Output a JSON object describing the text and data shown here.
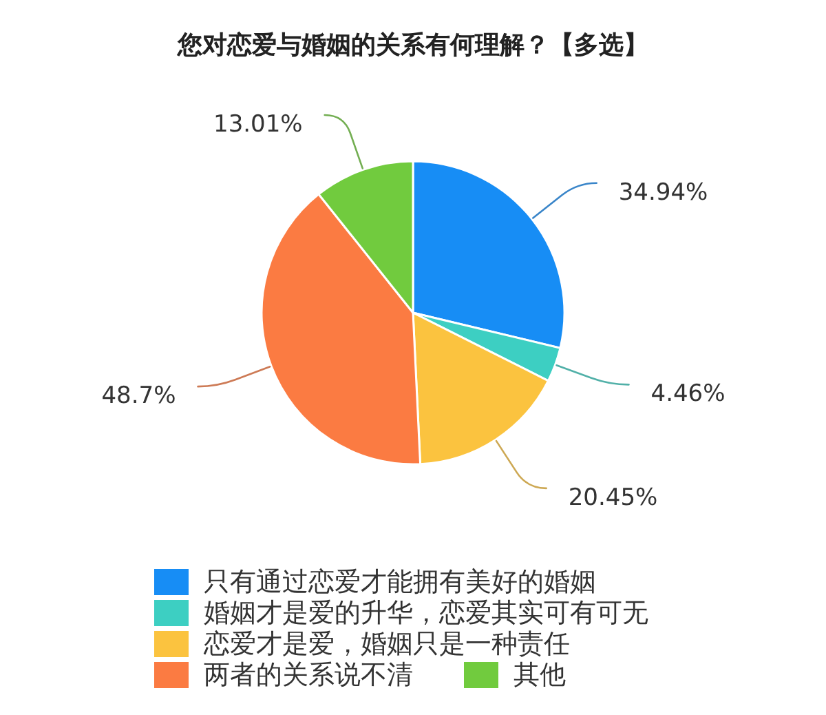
{
  "chart_data": {
    "type": "pie",
    "title": "您对恋爱与婚姻的关系有何理解？【多选】",
    "categories": [
      "只有通过恋爱才能拥有美好的婚姻",
      "婚姻才是爱的升华，恋爱其实可有可无",
      "恋爱才是爱，婚姻只是一种责任",
      "两者的关系说不清",
      "其他"
    ],
    "values": [
      34.94,
      4.46,
      20.45,
      48.7,
      13.01
    ],
    "colors": [
      "#178df5",
      "#3dcfc2",
      "#fbc33f",
      "#fb7b42",
      "#71cb3e"
    ],
    "value_labels": [
      "34.94%",
      "4.46%",
      "20.45%",
      "48.7%",
      "13.01%"
    ],
    "legend": "bottom"
  }
}
